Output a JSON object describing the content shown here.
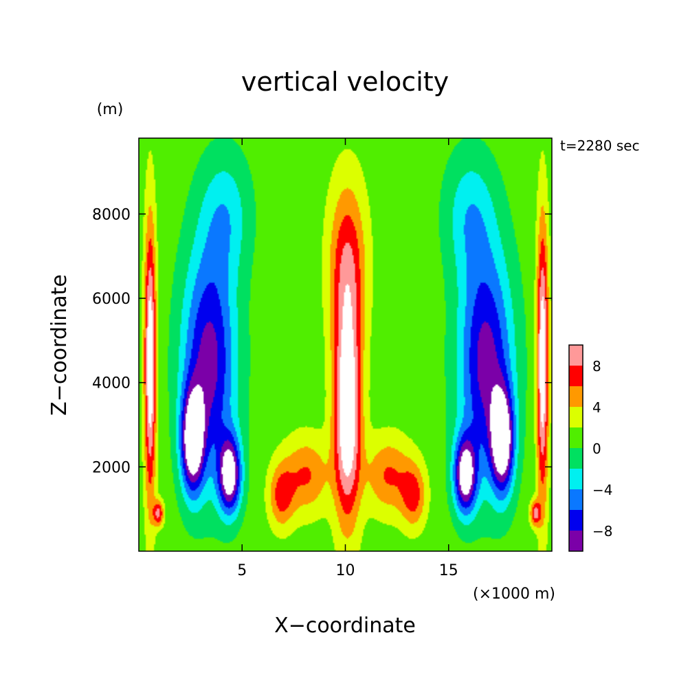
{
  "chart_data": {
    "type": "heatmap",
    "title": "vertical velocity",
    "xlabel": "X−coordinate",
    "ylabel": "Z−coordinate",
    "x_unit": "(×1000 m)",
    "y_unit": "(m)",
    "time_label": "t=2280 sec",
    "xlim": [
      0,
      20
    ],
    "ylim": [
      0,
      9800
    ],
    "x_ticks": [
      {
        "value": 5,
        "label": "5"
      },
      {
        "value": 10,
        "label": "10"
      },
      {
        "value": 15,
        "label": "15"
      }
    ],
    "y_ticks": [
      {
        "value": 2000,
        "label": "2000"
      },
      {
        "value": 4000,
        "label": "4000"
      },
      {
        "value": 6000,
        "label": "6000"
      },
      {
        "value": 8000,
        "label": "8000"
      }
    ],
    "field_range": [
      -10,
      10
    ],
    "colorbar": {
      "levels": [
        -10,
        -8,
        -6,
        -4,
        -2,
        0,
        2,
        4,
        6,
        8,
        10
      ],
      "colors": [
        "#7b00a8",
        "#0000ee",
        "#0a78ff",
        "#00f0f0",
        "#00e060",
        "#50ee00",
        "#dcff00",
        "#ff9900",
        "#ff0000",
        "#ff9999"
      ],
      "over_color": "#ffffff",
      "under_color": "#ffffff",
      "tick_labels": [
        {
          "value": 8,
          "label": "8"
        },
        {
          "value": 4,
          "label": "4"
        },
        {
          "value": 0,
          "label": "0"
        },
        {
          "value": -4,
          "label": "−4"
        },
        {
          "value": -8,
          "label": "−8"
        }
      ]
    },
    "updraft_centers": [
      {
        "x": 10.1,
        "z": 3300,
        "amp": 12.5,
        "sx": 0.65,
        "sz": 2500
      },
      {
        "x": 10.1,
        "z": 6800,
        "amp": 6.5,
        "sx": 0.9,
        "sz": 2000
      },
      {
        "x": 8.1,
        "z": 1800,
        "amp": 5.2,
        "sx": 1.1,
        "sz": 900
      },
      {
        "x": 12.1,
        "z": 1800,
        "amp": 5.2,
        "sx": 1.1,
        "sz": 900
      },
      {
        "x": 6.9,
        "z": 1300,
        "amp": 5.5,
        "sx": 0.6,
        "sz": 750
      },
      {
        "x": 13.3,
        "z": 1300,
        "amp": 5.5,
        "sx": 0.6,
        "sz": 750
      },
      {
        "x": 0.55,
        "z": 4500,
        "amp": 11.5,
        "sx": 0.28,
        "sz": 3200
      },
      {
        "x": 19.55,
        "z": 4500,
        "amp": 11.5,
        "sx": 0.28,
        "sz": 3200
      },
      {
        "x": 0.95,
        "z": 900,
        "amp": 7.5,
        "sx": 0.25,
        "sz": 300
      },
      {
        "x": 19.2,
        "z": 900,
        "amp": 7.5,
        "sx": 0.25,
        "sz": 300
      }
    ],
    "downdraft_centers": [
      {
        "x": 2.6,
        "z": 2600,
        "amp": 13.0,
        "sx": 0.55,
        "sz": 1200
      },
      {
        "x": 4.4,
        "z": 1800,
        "amp": 12.5,
        "sx": 0.55,
        "sz": 900
      },
      {
        "x": 3.4,
        "z": 4500,
        "amp": 10.0,
        "sx": 1.3,
        "sz": 2700
      },
      {
        "x": 4.2,
        "z": 8000,
        "amp": 4.0,
        "sx": 1.2,
        "sz": 1500
      },
      {
        "x": 17.6,
        "z": 2600,
        "amp": 13.0,
        "sx": 0.55,
        "sz": 1200
      },
      {
        "x": 15.8,
        "z": 1800,
        "amp": 12.5,
        "sx": 0.55,
        "sz": 900
      },
      {
        "x": 16.8,
        "z": 4500,
        "amp": 10.0,
        "sx": 1.3,
        "sz": 2700
      },
      {
        "x": 16.0,
        "z": 8000,
        "amp": 4.0,
        "sx": 1.2,
        "sz": 1500
      }
    ]
  }
}
